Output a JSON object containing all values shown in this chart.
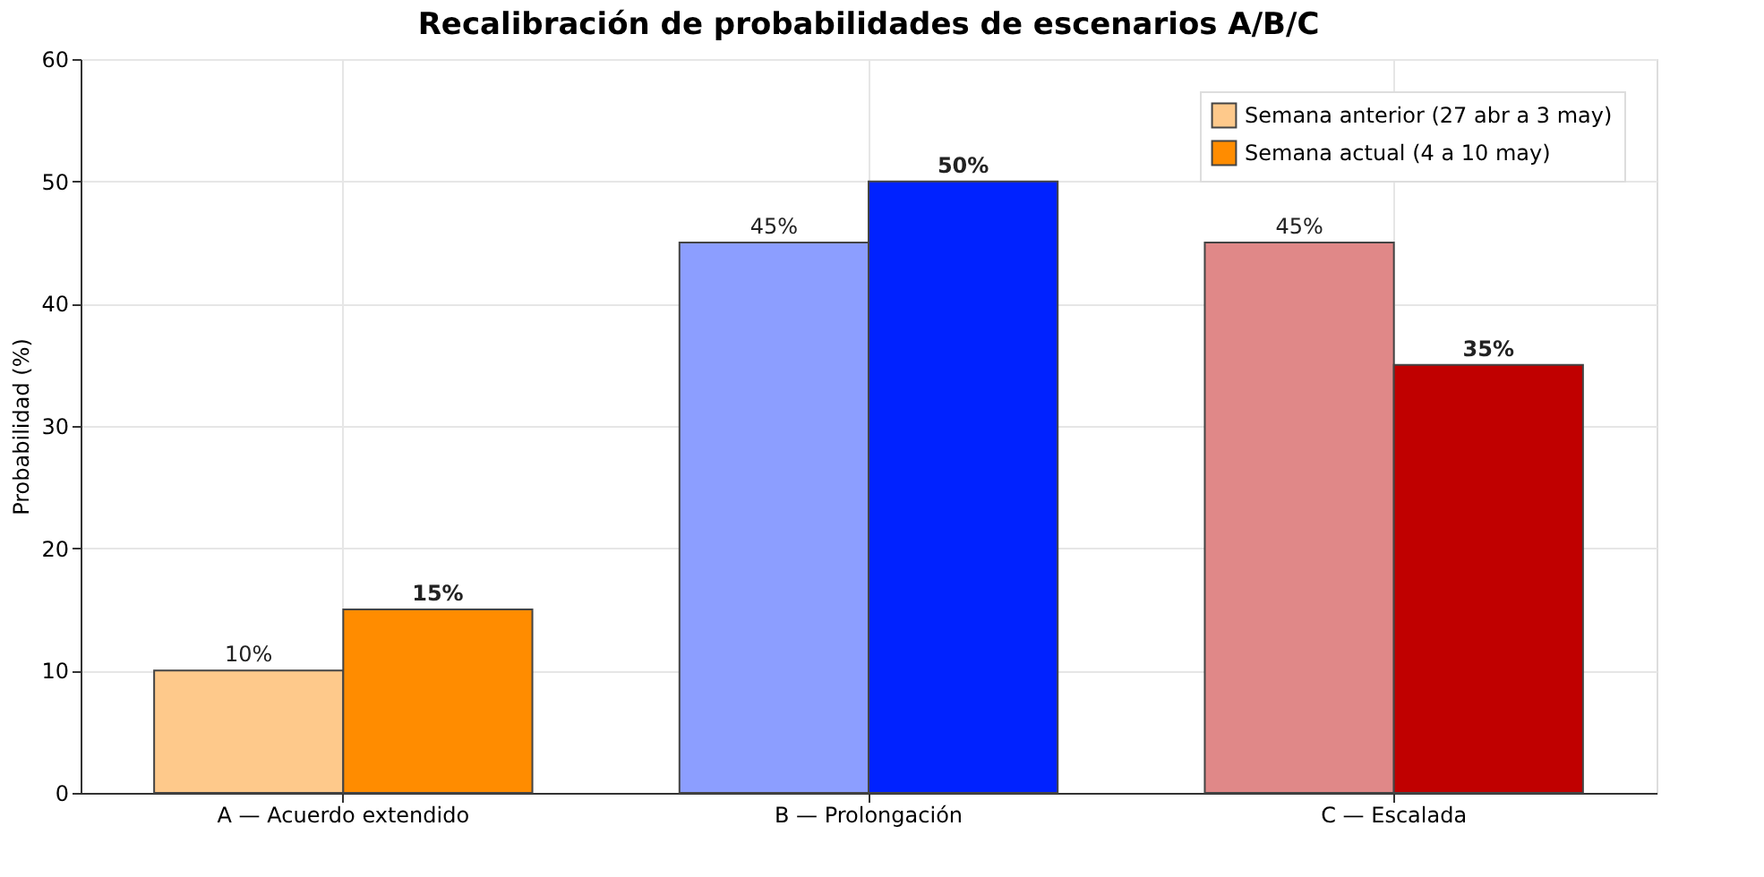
{
  "chart_data": {
    "type": "bar",
    "title": "Recalibración de probabilidades de escenarios A/B/C",
    "ylabel": "Probabilidad (%)",
    "categories": [
      "A — Acuerdo extendido",
      "B — Prolongación",
      "C — Escalada"
    ],
    "series": [
      {
        "name": "Semana anterior (27 abr a 3 may)",
        "colors": [
          "#fec98b",
          "#8c9eff",
          "#e08888"
        ],
        "values": [
          10,
          45,
          45
        ],
        "value_labels": [
          "10%",
          "45%",
          "45%"
        ]
      },
      {
        "name": "Semana actual (4 a 10 may)",
        "colors": [
          "#ff8c00",
          "#0022ff",
          "#c00000"
        ],
        "values": [
          15,
          50,
          35
        ],
        "value_labels": [
          "15%",
          "50%",
          "35%"
        ]
      }
    ],
    "ylim": [
      0,
      60
    ],
    "yticks": [
      0,
      10,
      20,
      30,
      40,
      50,
      60
    ],
    "grid": true,
    "legend": "top right"
  }
}
